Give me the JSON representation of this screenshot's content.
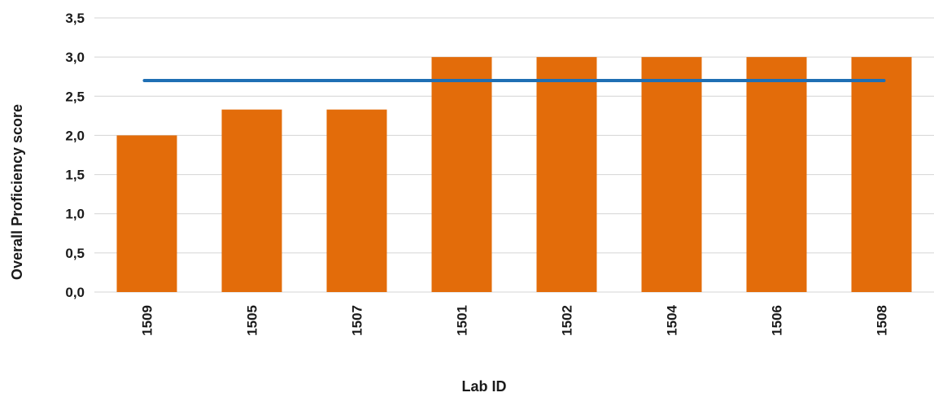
{
  "chart_data": {
    "type": "bar",
    "title": "",
    "xlabel": "Lab ID",
    "ylabel": "Overall Proficiency score",
    "categories": [
      "1509",
      "1505",
      "1507",
      "1501",
      "1502",
      "1504",
      "1506",
      "1508"
    ],
    "series": [
      {
        "values": [
          2.0,
          2.33,
          2.33,
          3.0,
          3.0,
          3.0,
          3.0,
          3.0
        ]
      }
    ],
    "reference_line": {
      "value": 2.7
    },
    "ylim": [
      0,
      3.5
    ],
    "yticks": [
      "0,0",
      "0,5",
      "1,0",
      "1,5",
      "2,0",
      "2,5",
      "3,0",
      "3,5"
    ],
    "grid": true,
    "legend": "none",
    "colors": {
      "bar": "#E36C0A",
      "line": "#1F6FB4",
      "grid": "#d4d4d4"
    }
  }
}
